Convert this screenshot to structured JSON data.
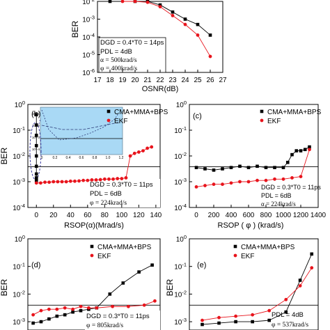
{
  "colors": {
    "cma": "#000000",
    "ekf": "#e8141c",
    "inset_bg": "#a9d9f5",
    "ellipse": "#3a3aa0"
  },
  "chart_data": [
    {
      "id": "top",
      "type": "line",
      "xlabel": "OSNR(dB)",
      "ylabel": "BER",
      "xlim": [
        17,
        27
      ],
      "ylim": [
        -6,
        -2
      ],
      "yscale": "log",
      "xticks": [
        "17",
        "18",
        "19",
        "20",
        "21",
        "22",
        "23",
        "24",
        "25",
        "26",
        "27"
      ],
      "yticks": [
        "10-2",
        "10-3",
        "10-4",
        "10-5",
        "10-6"
      ],
      "threshold": null,
      "legend": [],
      "annotation": [
        "DGD = 0.4*T0 = 14ps",
        "PDL = 4dB",
        "α = 500krad/s",
        "φ = 400krad/s"
      ],
      "series": [
        {
          "key": "cma",
          "marker": "square",
          "x": [
            18,
            20,
            21,
            22,
            23,
            24,
            25,
            26
          ],
          "y": [
            -1.7,
            -1.8,
            -1.9,
            -2.2,
            -2.6,
            -3.0,
            -3.3,
            -3.9
          ]
        },
        {
          "key": "ekf",
          "marker": "circle",
          "x": [
            19,
            20,
            21,
            22,
            23,
            24,
            25,
            26
          ],
          "y": [
            -1.85,
            -1.9,
            -2.05,
            -2.3,
            -2.8,
            -3.3,
            -3.9,
            -5.1
          ]
        }
      ]
    },
    {
      "id": "b",
      "type": "line",
      "panel_label": "(b)",
      "xlabel": "RSOP(α)(Mrad/s)",
      "ylabel": "BER",
      "xlim": [
        -10,
        145
      ],
      "ylim": [
        -4,
        0
      ],
      "yscale": "log",
      "xticks": [
        "0",
        "20",
        "40",
        "60",
        "80",
        "100",
        "120",
        "140"
      ],
      "yticks": [
        "10^0",
        "10^-1",
        "10^-2",
        "10^-3",
        "10^-4"
      ],
      "threshold": -2.42,
      "legend": [
        "CMA+MMA+BPS",
        "EKF"
      ],
      "annotation": [
        "DGD = 0.3*T0 = 11ps",
        "PDL = 6dB",
        "φ = 224krad/s"
      ],
      "inset": {
        "xticks": [
          "0",
          "0.2",
          "0.4",
          "0.6",
          "0.8",
          "1.0",
          "1.2"
        ],
        "yticks": [
          "10^-1",
          "10^-2",
          "10^-3",
          "10^-4"
        ]
      },
      "series": [
        {
          "key": "cma",
          "marker": "square",
          "x": [
            0,
            0,
            0,
            0,
            0,
            0,
            0,
            0,
            0
          ],
          "y": [
            -0.4,
            -0.8,
            -1.2,
            -1.6,
            -2.0,
            -2.4,
            -2.7,
            -2.85,
            -2.95
          ]
        },
        {
          "key": "ekf",
          "marker": "circle",
          "x": [
            0,
            5,
            10,
            15,
            20,
            25,
            30,
            35,
            40,
            45,
            50,
            55,
            60,
            65,
            70,
            75,
            80,
            85,
            90,
            95,
            100,
            105,
            110,
            115,
            120,
            125,
            130,
            135
          ],
          "y": [
            -3.05,
            -3.05,
            -3.02,
            -3.02,
            -3.0,
            -3.0,
            -3.0,
            -3.0,
            -2.98,
            -2.98,
            -2.97,
            -2.95,
            -2.95,
            -2.93,
            -2.93,
            -2.92,
            -2.9,
            -2.9,
            -2.9,
            -2.88,
            -2.88,
            -2.85,
            -2.0,
            -1.9,
            -1.85,
            -1.8,
            -1.7,
            -1.65
          ]
        }
      ]
    },
    {
      "id": "c",
      "type": "line",
      "panel_label": "(c)",
      "xlabel": "RSOP ( φ ) (krad/s)",
      "ylabel": "",
      "xlim": [
        -80,
        1400
      ],
      "ylim": [
        -4,
        0
      ],
      "yscale": "log",
      "xticks": [
        "0",
        "200",
        "400",
        "600",
        "800",
        "1000",
        "1200",
        "1400"
      ],
      "yticks": [
        "10^0",
        "10^-1",
        "10^-2",
        "10^-3",
        "10^-4"
      ],
      "threshold": -2.42,
      "legend": [
        "CMA+MMA+BPS",
        "EKF"
      ],
      "annotation": [
        "DGD = 0.3*T0 = 11ps",
        "PDL = 6dB",
        "α = 224krad/s"
      ],
      "series": [
        {
          "key": "cma",
          "marker": "square",
          "x": [
            0,
            100,
            200,
            300,
            400,
            500,
            600,
            700,
            800,
            900,
            1000,
            1050,
            1100,
            1150,
            1200,
            1250,
            1300
          ],
          "y": [
            -2.45,
            -2.5,
            -2.55,
            -2.5,
            -2.45,
            -2.4,
            -2.45,
            -2.4,
            -2.45,
            -2.45,
            -2.45,
            -2.25,
            -1.95,
            -1.8,
            -1.8,
            -1.75,
            -1.65
          ]
        },
        {
          "key": "ekf",
          "marker": "circle",
          "x": [
            0,
            100,
            200,
            300,
            400,
            500,
            600,
            700,
            800,
            900,
            1000,
            1100,
            1200,
            1300
          ],
          "y": [
            -3.2,
            -3.15,
            -3.1,
            -3.1,
            -3.05,
            -3.0,
            -3.0,
            -2.95,
            -2.95,
            -2.9,
            -2.9,
            -2.85,
            -2.8,
            -1.75
          ]
        }
      ]
    },
    {
      "id": "d",
      "type": "line",
      "panel_label": "(d)",
      "xlabel": "",
      "ylabel": "BER",
      "xlim": [
        0,
        10
      ],
      "ylim": [
        -3.3,
        0
      ],
      "yscale": "log",
      "xticks": [],
      "yticks": [
        "10^0",
        "10^-1",
        "10^-2",
        "10^-3"
      ],
      "threshold": -2.4,
      "legend": [
        "CMA+MMA+BPS",
        "EKF"
      ],
      "annotation": [
        "DGD = 0.3*T0 = 11ps",
        "φ = 805krad/s"
      ],
      "series": [
        {
          "key": "cma",
          "marker": "square",
          "x": [
            0.4,
            1.0,
            1.6,
            2.2,
            2.8,
            3.4,
            4.0,
            4.6,
            5.2,
            6.2,
            7.2,
            8.4,
            9.4
          ],
          "y": [
            -3.05,
            -3.0,
            -2.9,
            -2.8,
            -2.75,
            -2.65,
            -2.6,
            -2.55,
            -2.5,
            -2.0,
            -1.6,
            -1.2,
            -0.95
          ]
        },
        {
          "key": "ekf",
          "marker": "circle",
          "x": [
            0.4,
            1.0,
            1.6,
            2.2,
            2.8,
            3.4,
            4.0,
            4.6,
            5.2,
            6.4,
            7.6,
            8.8,
            9.6
          ],
          "y": [
            -2.75,
            -2.6,
            -2.55,
            -2.55,
            -2.5,
            -2.55,
            -2.45,
            -2.5,
            -2.5,
            -2.45,
            -2.45,
            -2.4,
            -2.25
          ]
        }
      ]
    },
    {
      "id": "e",
      "type": "line",
      "panel_label": "(e)",
      "xlabel": "",
      "ylabel": "BER",
      "xlim": [
        0,
        10
      ],
      "ylim": [
        -3.3,
        0
      ],
      "yscale": "log",
      "xticks": [],
      "yticks": [
        "10^0",
        "10^-1",
        "10^-2",
        "10^-3"
      ],
      "threshold": -2.4,
      "legend": [
        "CMA+MMA+BPS",
        "EKF"
      ],
      "annotation": [
        "PDL = 4dB",
        "φ = 537krad/s"
      ],
      "series": [
        {
          "key": "cma",
          "marker": "square",
          "x": [
            1.0,
            2.3,
            3.6,
            4.9,
            6.2,
            7.5,
            8.6,
            9.5
          ],
          "y": [
            -3.1,
            -3.05,
            -3.0,
            -3.0,
            -2.95,
            -2.65,
            -1.5,
            -0.55
          ]
        },
        {
          "key": "ekf",
          "marker": "circle",
          "x": [
            1.0,
            2.3,
            3.6,
            4.9,
            6.2,
            7.5,
            8.6,
            9.5
          ],
          "y": [
            -2.95,
            -2.85,
            -2.8,
            -2.75,
            -2.6,
            -2.2,
            -1.7,
            -1.05
          ]
        }
      ]
    }
  ]
}
